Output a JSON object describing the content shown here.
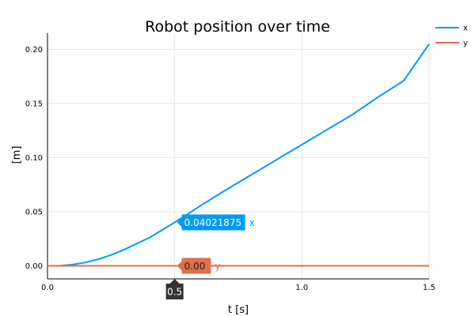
{
  "chart_data": {
    "type": "line",
    "title": "Robot position over time",
    "xlabel": "t [s]",
    "ylabel": "[m]",
    "xlim": [
      0,
      1.5
    ],
    "ylim": [
      -0.012,
      0.215
    ],
    "xticks": [
      0,
      0.5,
      1.0,
      1.5
    ],
    "xtick_labels": [
      "0.0",
      "0.5",
      "1.0",
      "1.5"
    ],
    "yticks": [
      0,
      0.05,
      0.1,
      0.15,
      0.2
    ],
    "ytick_labels": [
      "0.00",
      "0.05",
      "0.10",
      "0.15",
      "0.20"
    ],
    "grid": true,
    "legend_position": "top-right, outside plot",
    "series": [
      {
        "name": "x",
        "color": "#009AFA",
        "x": [
          0,
          0.05,
          0.1,
          0.15,
          0.2,
          0.25,
          0.3,
          0.35,
          0.4,
          0.45,
          0.5,
          0.55,
          0.6,
          0.7,
          0.8,
          0.9,
          1.0,
          1.1,
          1.2,
          1.3,
          1.4,
          1.5
        ],
        "y": [
          0,
          0.0001,
          0.0012,
          0.0032,
          0.0062,
          0.0101,
          0.0149,
          0.0205,
          0.026,
          0.033,
          0.0402,
          0.0477,
          0.0554,
          0.07,
          0.084,
          0.098,
          0.112,
          0.126,
          0.14,
          0.156,
          0.171,
          0.205
        ]
      },
      {
        "name": "y",
        "color": "#E26F46",
        "x": [
          0,
          1.5
        ],
        "y": [
          0,
          0
        ]
      }
    ],
    "hover": {
      "x_value_label": "0.5",
      "labels": [
        {
          "series": "x",
          "value_text": "0.04021875",
          "name_text": "x",
          "y": 0.04021875
        },
        {
          "series": "y",
          "value_text": "0.00",
          "name_text": "y",
          "y": 0
        }
      ]
    }
  }
}
